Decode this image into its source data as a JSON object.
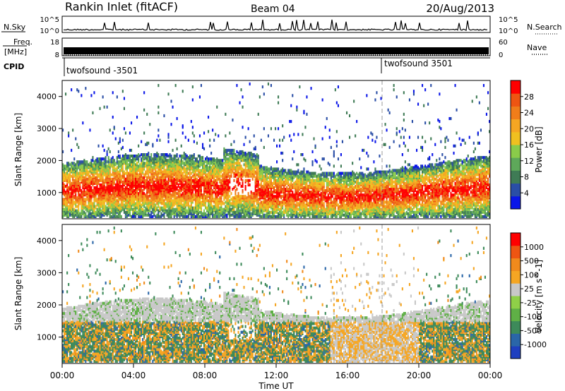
{
  "header": {
    "station": "Rankin Inlet (fitACF)",
    "beam": "Beam 04",
    "date": "20/Aug/2013"
  },
  "noise_panel": {
    "left_label": "N.Sky",
    "right_label": "N.Search",
    "left_ticks": [
      "10^5",
      "10^0"
    ],
    "right_ticks": [
      "10^5",
      "10^0"
    ]
  },
  "freq_panel": {
    "left_label_1": "Freq.",
    "left_label_2": "[MHz]",
    "left_ticks": [
      "18",
      "8"
    ],
    "right_label": "Nave",
    "right_ticks": [
      "60",
      "0"
    ]
  },
  "cpid_panel": {
    "label": "CPID",
    "entries": [
      {
        "text": "twofsound -3501",
        "time_hours": 0.0
      },
      {
        "text": "twofsound 3501",
        "time_hours": 18.0
      }
    ]
  },
  "chart_data": [
    {
      "type": "heatmap",
      "title": "",
      "xlabel": "",
      "ylabel": "Slant Range [km]",
      "xlim": [
        0,
        24
      ],
      "ylim": [
        180,
        4500
      ],
      "yticks": [
        1000,
        2000,
        3000,
        4000
      ],
      "colorbar": {
        "label": "Power [dB]",
        "ticks": [
          "4",
          "8",
          "12",
          "16",
          "20",
          "24",
          "28"
        ],
        "colors": [
          "#0a16e8",
          "#2a4ea6",
          "#3f7b55",
          "#5ea85a",
          "#8acb4a",
          "#f0c020",
          "#f5a623",
          "#f07d1a",
          "#ee5512",
          "#ff0000"
        ]
      },
      "notes_on_data": "backscatter mostly between 400 and 2300 km slant range all day"
    },
    {
      "type": "heatmap",
      "title": "",
      "xlabel": "Time UT",
      "ylabel": "Slant Range [km]",
      "xlim": [
        0,
        24
      ],
      "ylim": [
        180,
        4500
      ],
      "yticks": [
        1000,
        2000,
        3000,
        4000
      ],
      "xticks": [
        "00:00",
        "04:00",
        "08:00",
        "12:00",
        "16:00",
        "20:00",
        "00:00"
      ],
      "colorbar": {
        "label": "Velocity [m s^-1]",
        "ticks": [
          "1000",
          "500",
          "100",
          "25",
          "-25",
          "-100",
          "-500",
          "-1000"
        ],
        "colors": [
          "#1f3fbf",
          "#2a66a8",
          "#3d8a5a",
          "#5fb046",
          "#8fd048",
          "#c8c8c8",
          "#f5a623",
          "#f08a1c",
          "#ee5512",
          "#ff0000"
        ]
      }
    }
  ]
}
